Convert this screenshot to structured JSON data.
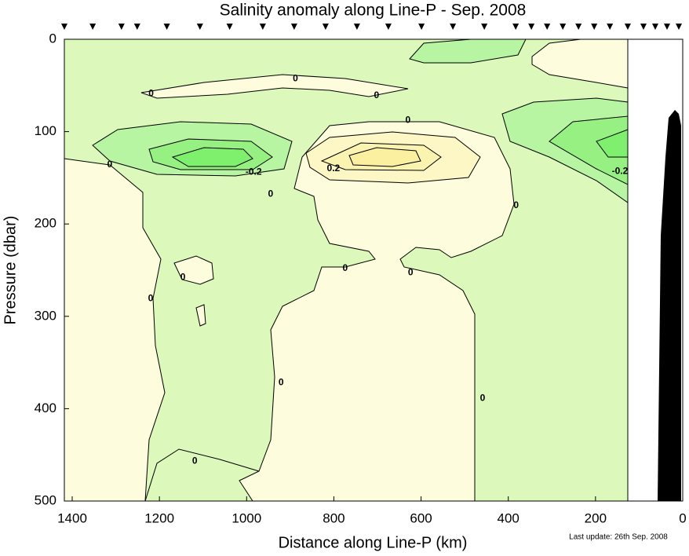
{
  "chart_data": {
    "type": "contour",
    "title": "Salinity anomaly along Line-P - Sep. 2008",
    "xlabel": "Distance along Line-P (km)",
    "ylabel": "Pressure (dbar)",
    "footnote": "Last update: 26th Sep. 2008",
    "xlim": [
      1418,
      0
    ],
    "ylim": [
      0,
      500
    ],
    "y_reversed": true,
    "xticks": [
      1400,
      1200,
      1000,
      800,
      600,
      400,
      200,
      0
    ],
    "yticks": [
      0,
      100,
      200,
      300,
      400,
      500
    ],
    "stations": [
      1418,
      1353,
      1287,
      1251,
      1183,
      1107,
      1039,
      963,
      891,
      819,
      747,
      675,
      599,
      527,
      455,
      383,
      347,
      311,
      275,
      239,
      203,
      167,
      126,
      90,
      63,
      36,
      9
    ],
    "contour_labels": [
      {
        "value": 0,
        "x": 888,
        "y": 43
      },
      {
        "value": 0,
        "x": 1219,
        "y": 59
      },
      {
        "value": 0,
        "x": 702,
        "y": 61
      },
      {
        "value": 0,
        "x": 630,
        "y": 88
      },
      {
        "value": 0,
        "x": 1314,
        "y": 136
      },
      {
        "value": -0.2,
        "x": 984,
        "y": 144
      },
      {
        "value": 0.2,
        "x": 801,
        "y": 140
      },
      {
        "value": 0,
        "x": 945,
        "y": 168
      },
      {
        "value": 0,
        "x": 382,
        "y": 180
      },
      {
        "value": 0,
        "x": 774,
        "y": 248
      },
      {
        "value": 0,
        "x": 624,
        "y": 253
      },
      {
        "value": 0,
        "x": 1146,
        "y": 258
      },
      {
        "value": 0,
        "x": 1220,
        "y": 281
      },
      {
        "value": 0,
        "x": 921,
        "y": 372
      },
      {
        "value": 0,
        "x": 459,
        "y": 389
      },
      {
        "value": 0,
        "x": 1119,
        "y": 457
      },
      {
        "value": -0.2,
        "x": 144,
        "y": 143
      }
    ]
  }
}
